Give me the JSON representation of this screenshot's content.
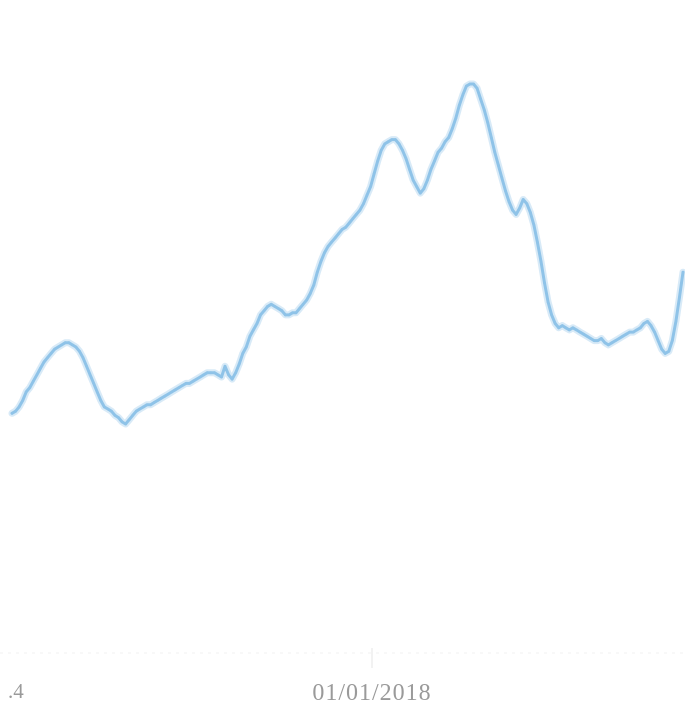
{
  "chart_data": {
    "type": "line",
    "title": "",
    "xlabel": "",
    "ylabel": "",
    "grid": false,
    "legend": "none",
    "color": "#8fc3e8",
    "x_tick_labels": [
      ".4",
      "01/01/2018"
    ],
    "series": [
      {
        "values": [
          24,
          25,
          27,
          30,
          34,
          36,
          39,
          42,
          45,
          48,
          50,
          52,
          54,
          55,
          56,
          57,
          57,
          56,
          55,
          53,
          50,
          46,
          42,
          38,
          34,
          30,
          27,
          26,
          25,
          23,
          22,
          20,
          19,
          21,
          23,
          25,
          26,
          27,
          28,
          28,
          29,
          30,
          31,
          32,
          33,
          34,
          35,
          36,
          37,
          38,
          38,
          39,
          40,
          41,
          42,
          43,
          43,
          43,
          42,
          41,
          46,
          42,
          40,
          43,
          47,
          52,
          55,
          60,
          63,
          66,
          70,
          72,
          74,
          75,
          74,
          73,
          72,
          70,
          70,
          71,
          71,
          73,
          75,
          77,
          80,
          84,
          90,
          95,
          99,
          102,
          104,
          106,
          108,
          110,
          111,
          113,
          115,
          117,
          119,
          122,
          126,
          130,
          136,
          142,
          147,
          150,
          151,
          152,
          152,
          150,
          147,
          143,
          138,
          133,
          130,
          127,
          129,
          133,
          138,
          142,
          146,
          148,
          151,
          153,
          157,
          162,
          168,
          173,
          177,
          178,
          178,
          176,
          171,
          166,
          160,
          153,
          146,
          140,
          134,
          128,
          123,
          119,
          117,
          120,
          124,
          122,
          118,
          112,
          104,
          95,
          85,
          76,
          70,
          66,
          64,
          65,
          64,
          63,
          64,
          63,
          62,
          61,
          60,
          59,
          58,
          58,
          59,
          57,
          56,
          57,
          58,
          59,
          60,
          61,
          62,
          62,
          63,
          64,
          66,
          67,
          65,
          62,
          58,
          54,
          52,
          53,
          58,
          67,
          78,
          90
        ]
      }
    ]
  }
}
